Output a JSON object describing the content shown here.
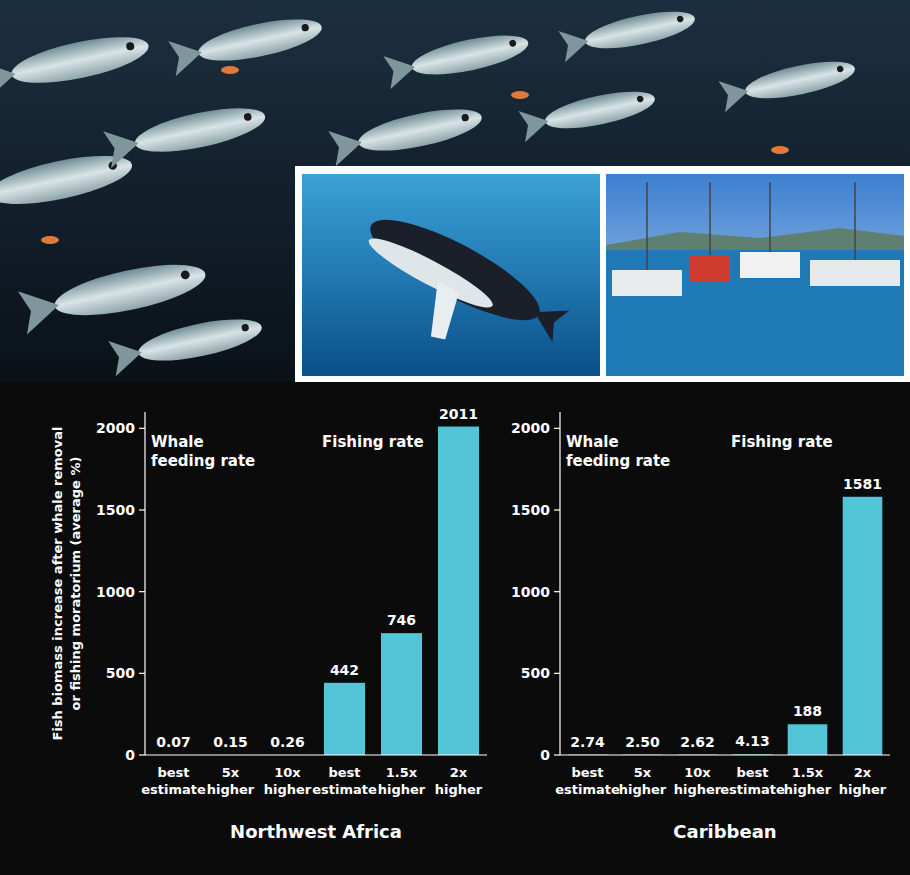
{
  "chart_data": [
    {
      "type": "bar",
      "ylabel": "Fish biomass increase after whale removal or fishing moratorium (average %)",
      "xlabel": "Northwest Africa",
      "categories": [
        "best estimate",
        "5x higher",
        "10x higher",
        "best estimate",
        "1.5x higher",
        "2x higher"
      ],
      "values": [
        0.07,
        0.15,
        0.26,
        442,
        746,
        2011
      ],
      "groups": [
        {
          "label": "Whale feeding rate",
          "start": 0,
          "end": 2
        },
        {
          "label": "Fishing rate",
          "start": 3,
          "end": 5
        }
      ],
      "color": "#52c6d6",
      "ylim": [
        0,
        2100
      ],
      "yticks": [
        0,
        500,
        1000,
        1500,
        2000
      ],
      "grid": false,
      "data_labels": true
    },
    {
      "type": "bar",
      "xlabel": "Caribbean",
      "categories": [
        "best estimate",
        "5x higher",
        "10x higher",
        "best estimate",
        "1.5x higher",
        "2x higher"
      ],
      "values": [
        2.74,
        2.5,
        2.62,
        4.13,
        188,
        1581
      ],
      "value_labels": [
        "2.74",
        "2.50",
        "2.62",
        "4.13",
        "188",
        "1581"
      ],
      "groups": [
        {
          "label": "Whale feeding rate",
          "start": 0,
          "end": 2
        },
        {
          "label": "Fishing rate",
          "start": 3,
          "end": 5
        }
      ],
      "color": "#52c6d6",
      "ylim": [
        0,
        2100
      ],
      "yticks": [
        0,
        500,
        1000,
        1500,
        2000
      ],
      "grid": false,
      "data_labels": true
    }
  ]
}
